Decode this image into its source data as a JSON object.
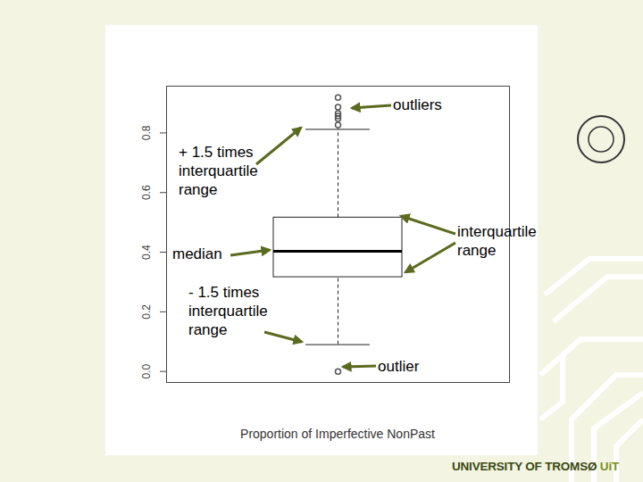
{
  "chart_data": {
    "type": "box",
    "xlabel": "Proportion of Imperfective NonPast",
    "ylim": [
      -0.037,
      0.957
    ],
    "yticks": [
      {
        "value": 0,
        "label": "0.0"
      },
      {
        "value": 0.2,
        "label": "0.2"
      },
      {
        "value": 0.4,
        "label": "0.4"
      },
      {
        "value": 0.6,
        "label": "0.6"
      },
      {
        "value": 0.8,
        "label": "0.8"
      }
    ],
    "stats": {
      "whisker_low": 0.09,
      "q1": 0.316,
      "median": 0.403,
      "q3": 0.516,
      "whisker_high": 0.812
    },
    "outliers": [
      0.919,
      0.887,
      0.866,
      0.857,
      0.848,
      0.827,
      0.0
    ],
    "annotations": [
      "outliers",
      "+ 1.5 times\ninterquartile\nrange",
      "interquartile\nrange",
      "median",
      "- 1.5 times\ninterquartile\nrange",
      "outlier"
    ]
  },
  "slide": {
    "footer": "UNIVERSITY OF TROMSØ",
    "footer_mark": "UiT"
  }
}
